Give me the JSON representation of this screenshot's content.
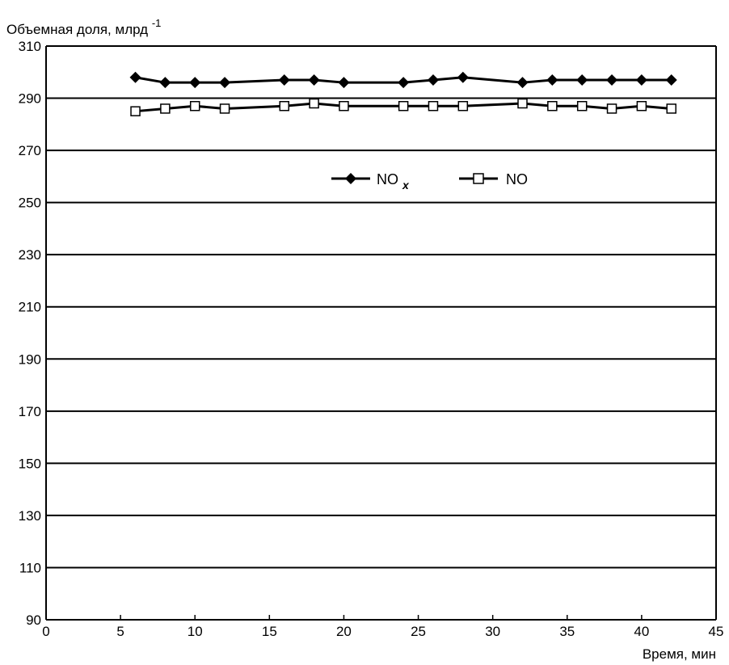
{
  "chart_data": {
    "type": "line",
    "title": "",
    "ylabel": "Объемная доля, млрд",
    "ylabel_superscript": "-1",
    "xlabel": "Время, мин",
    "xlim": [
      0,
      45
    ],
    "ylim": [
      90,
      310
    ],
    "x_ticks": [
      0,
      5,
      10,
      15,
      20,
      25,
      30,
      35,
      40,
      45
    ],
    "y_ticks": [
      90,
      110,
      130,
      150,
      170,
      190,
      210,
      230,
      250,
      270,
      290,
      310
    ],
    "grid": "horizontal",
    "legend_position": "top-center",
    "series": [
      {
        "name": "NO",
        "name_subscript": "x",
        "marker": "filled-diamond",
        "color": "#000000",
        "x": [
          6,
          8,
          10,
          12,
          16,
          18,
          20,
          24,
          26,
          28,
          32,
          34,
          36,
          38,
          40,
          42
        ],
        "y": [
          298,
          296,
          296,
          296,
          297,
          297,
          296,
          296,
          297,
          298,
          296,
          297,
          297,
          297,
          297,
          297
        ]
      },
      {
        "name": "NO",
        "marker": "open-square",
        "color": "#000000",
        "x": [
          6,
          8,
          10,
          12,
          16,
          18,
          20,
          24,
          26,
          28,
          32,
          34,
          36,
          38,
          40,
          42
        ],
        "y": [
          285,
          286,
          287,
          286,
          287,
          288,
          287,
          287,
          287,
          287,
          288,
          287,
          287,
          286,
          287,
          286
        ]
      }
    ]
  }
}
